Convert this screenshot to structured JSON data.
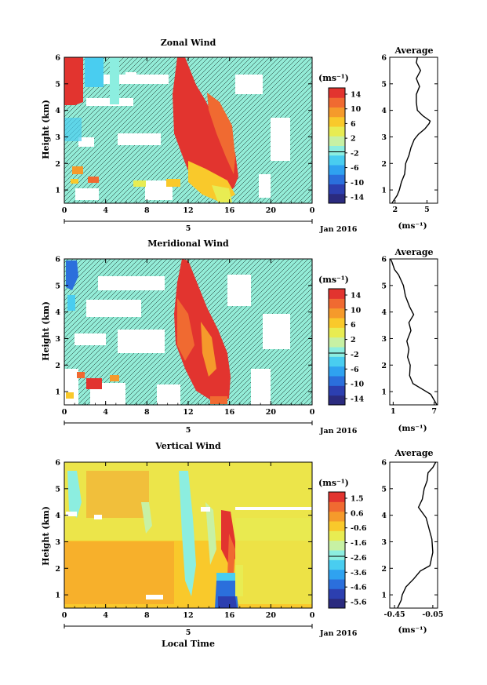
{
  "colorbar_colors": [
    "#2b2b7f",
    "#2c3fb0",
    "#2b6fdc",
    "#2fa2f0",
    "#49cdf0",
    "#8ceee0",
    "#c7f1a4",
    "#e8ec52",
    "#f9c92b",
    "#f59a2b",
    "#f06a31",
    "#e2342f"
  ],
  "chart_data": [
    {
      "type": "heatmap",
      "title": "Zonal Wind",
      "ylabel": "Height (km)",
      "xlabel": "",
      "x_ticks": [
        "0",
        "4",
        "8",
        "12",
        "16",
        "20",
        "0"
      ],
      "y_ticks": [
        "1",
        "2",
        "3",
        "4",
        "5",
        "6"
      ],
      "ylim": [
        0.5,
        6
      ],
      "xlim": [
        0,
        24
      ],
      "day_label": "5",
      "date_label": "Jan 2016",
      "colorbar": {
        "unit": "(ms⁻¹)",
        "ticks": [
          "14",
          "10",
          "6",
          "2",
          "-2",
          "-6",
          "-10",
          "-14"
        ]
      },
      "profile": {
        "title": "Average",
        "xlabel": "(ms⁻¹)",
        "x_ticks": [
          "2",
          "5"
        ],
        "xlim": [
          1.5,
          6
        ],
        "y_ticks": [
          "1",
          "2",
          "3",
          "4",
          "5",
          "6"
        ],
        "points": [
          [
            1.7,
            0.5
          ],
          [
            2.2,
            0.8
          ],
          [
            2.4,
            1.0
          ],
          [
            2.6,
            1.3
          ],
          [
            2.9,
            1.6
          ],
          [
            3.0,
            2.0
          ],
          [
            3.3,
            2.3
          ],
          [
            3.5,
            2.6
          ],
          [
            3.8,
            2.9
          ],
          [
            4.2,
            3.1
          ],
          [
            4.8,
            3.3
          ],
          [
            5.2,
            3.5
          ],
          [
            5.3,
            3.6
          ],
          [
            4.6,
            3.8
          ],
          [
            4.1,
            4.0
          ],
          [
            4.0,
            4.3
          ],
          [
            4.0,
            4.6
          ],
          [
            4.3,
            4.9
          ],
          [
            4.0,
            5.2
          ],
          [
            4.4,
            5.5
          ],
          [
            4.0,
            5.8
          ],
          [
            4.1,
            6.0
          ]
        ]
      }
    },
    {
      "type": "heatmap",
      "title": "Meridional Wind",
      "ylabel": "Height (km)",
      "xlabel": "",
      "x_ticks": [
        "0",
        "4",
        "8",
        "12",
        "16",
        "20",
        "0"
      ],
      "y_ticks": [
        "1",
        "2",
        "3",
        "4",
        "5",
        "6"
      ],
      "ylim": [
        0.5,
        6
      ],
      "xlim": [
        0,
        24
      ],
      "day_label": "5",
      "date_label": "Jan 2016",
      "colorbar": {
        "unit": "(ms⁻¹)",
        "ticks": [
          "14",
          "10",
          "6",
          "2",
          "-2",
          "-6",
          "-10",
          "-14"
        ]
      },
      "profile": {
        "title": "Average",
        "xlabel": "(ms⁻¹)",
        "x_ticks": [
          "1",
          "7"
        ],
        "xlim": [
          0.5,
          7.5
        ],
        "y_ticks": [
          "1",
          "2",
          "3",
          "4",
          "5",
          "6"
        ],
        "points": [
          [
            7.4,
            0.5
          ],
          [
            6.5,
            0.9
          ],
          [
            5.2,
            1.1
          ],
          [
            3.9,
            1.3
          ],
          [
            3.4,
            1.6
          ],
          [
            3.5,
            2.0
          ],
          [
            3.1,
            2.3
          ],
          [
            3.3,
            2.6
          ],
          [
            3.0,
            2.9
          ],
          [
            3.6,
            3.3
          ],
          [
            3.3,
            3.6
          ],
          [
            4.0,
            3.9
          ],
          [
            3.4,
            4.2
          ],
          [
            2.8,
            4.6
          ],
          [
            2.5,
            5.0
          ],
          [
            1.8,
            5.4
          ],
          [
            1.2,
            5.6
          ],
          [
            0.8,
            5.9
          ],
          [
            0.6,
            6.0
          ]
        ]
      }
    },
    {
      "type": "heatmap",
      "title": "Vertical Wind",
      "ylabel": "Height (km)",
      "xlabel": "Local Time",
      "x_ticks": [
        "0",
        "4",
        "8",
        "12",
        "16",
        "20",
        "0"
      ],
      "y_ticks": [
        "1",
        "2",
        "3",
        "4",
        "5",
        "6"
      ],
      "ylim": [
        0.5,
        6
      ],
      "xlim": [
        0,
        24
      ],
      "day_label": "5",
      "date_label": "Jan 2016",
      "colorbar": {
        "unit": "(ms⁻¹)",
        "ticks": [
          "1.5",
          "0.6",
          "-0.6",
          "-1.6",
          "-2.6",
          "-3.6",
          "-4.6",
          "-5.6"
        ]
      },
      "profile": {
        "title": "Average",
        "xlabel": "(ms⁻¹)",
        "x_ticks": [
          "-0.45",
          "-0.05"
        ],
        "xlim": [
          -0.5,
          0.0
        ],
        "y_ticks": [
          "1",
          "2",
          "3",
          "4",
          "5",
          "6"
        ],
        "points": [
          [
            -0.42,
            0.5
          ],
          [
            -0.38,
            0.8
          ],
          [
            -0.37,
            1.0
          ],
          [
            -0.33,
            1.3
          ],
          [
            -0.25,
            1.6
          ],
          [
            -0.18,
            1.9
          ],
          [
            -0.08,
            2.1
          ],
          [
            -0.05,
            2.6
          ],
          [
            -0.06,
            3.1
          ],
          [
            -0.09,
            3.5
          ],
          [
            -0.12,
            3.9
          ],
          [
            -0.2,
            4.3
          ],
          [
            -0.16,
            4.6
          ],
          [
            -0.14,
            5.0
          ],
          [
            -0.11,
            5.3
          ],
          [
            -0.1,
            5.6
          ],
          [
            -0.05,
            5.8
          ],
          [
            -0.02,
            6.0
          ]
        ]
      }
    }
  ]
}
